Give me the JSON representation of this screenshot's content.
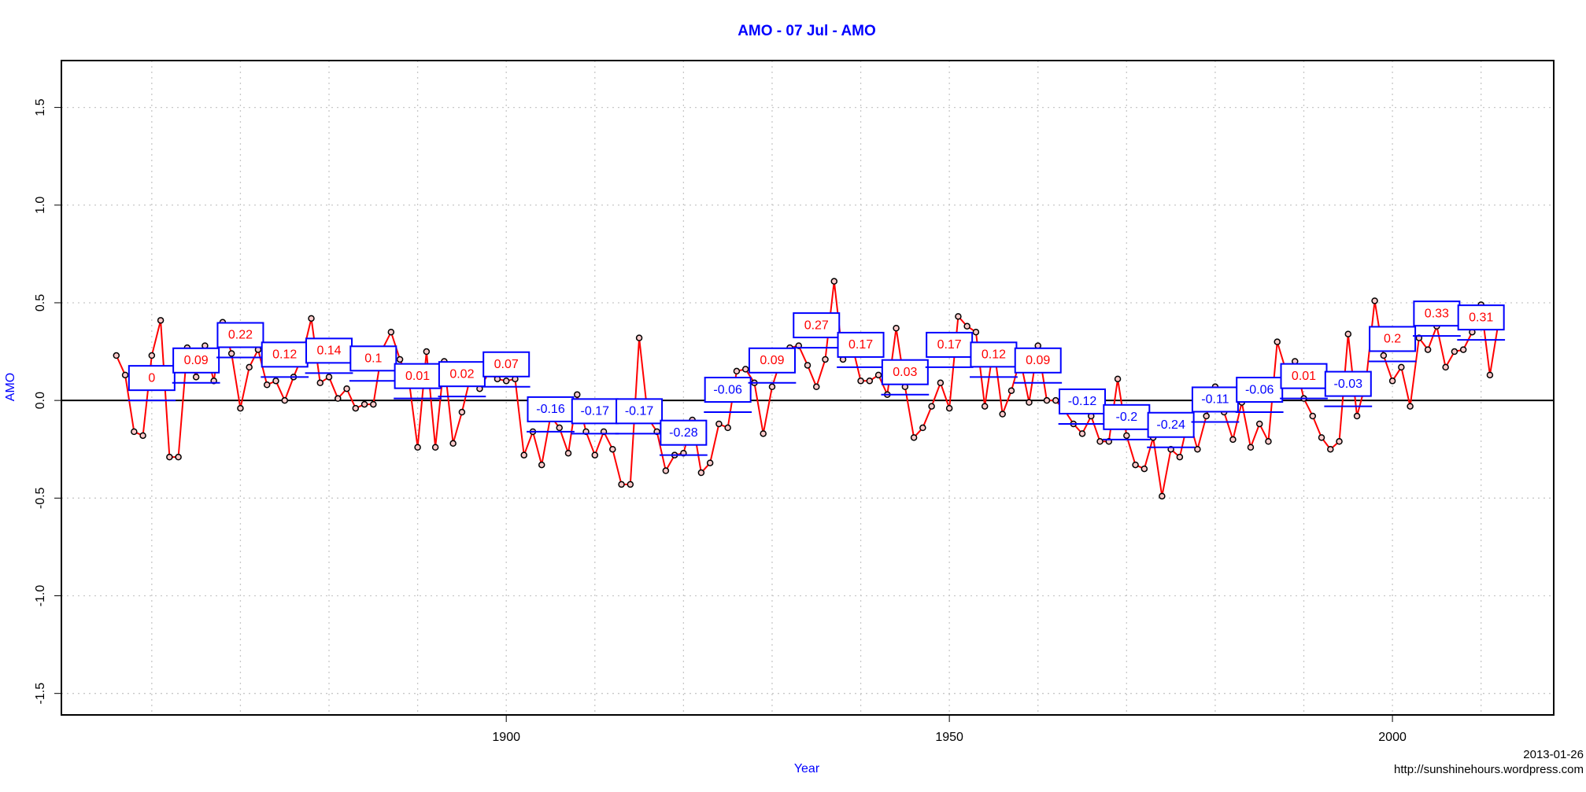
{
  "chart_data": {
    "type": "line",
    "title": "AMO - 07 Jul - AMO",
    "x_label": "Year",
    "y_label": "AMO",
    "annotations": [
      "2013-01-26",
      "http://sunshinehours.wordpress.com"
    ],
    "x": [
      1856,
      1857,
      1858,
      1859,
      1860,
      1861,
      1862,
      1863,
      1864,
      1865,
      1866,
      1867,
      1868,
      1869,
      1870,
      1871,
      1872,
      1873,
      1874,
      1875,
      1876,
      1877,
      1878,
      1879,
      1880,
      1881,
      1882,
      1883,
      1884,
      1885,
      1886,
      1887,
      1888,
      1889,
      1890,
      1891,
      1892,
      1893,
      1894,
      1895,
      1896,
      1897,
      1898,
      1899,
      1900,
      1901,
      1902,
      1903,
      1904,
      1905,
      1906,
      1907,
      1908,
      1909,
      1910,
      1911,
      1912,
      1913,
      1914,
      1915,
      1916,
      1917,
      1918,
      1919,
      1920,
      1921,
      1922,
      1923,
      1924,
      1925,
      1926,
      1927,
      1928,
      1929,
      1930,
      1931,
      1932,
      1933,
      1934,
      1935,
      1936,
      1937,
      1938,
      1939,
      1940,
      1941,
      1942,
      1943,
      1944,
      1945,
      1946,
      1947,
      1948,
      1949,
      1950,
      1951,
      1952,
      1953,
      1954,
      1955,
      1956,
      1957,
      1958,
      1959,
      1960,
      1961,
      1962,
      1963,
      1964,
      1965,
      1966,
      1967,
      1968,
      1969,
      1970,
      1971,
      1972,
      1973,
      1974,
      1975,
      1976,
      1977,
      1978,
      1979,
      1980,
      1981,
      1982,
      1983,
      1984,
      1985,
      1986,
      1987,
      1988,
      1989,
      1990,
      1991,
      1992,
      1993,
      1994,
      1995,
      1996,
      1997,
      1998,
      1999,
      2000,
      2001,
      2002,
      2003,
      2004,
      2005,
      2006,
      2007,
      2008,
      2009,
      2010,
      2011,
      2012
    ],
    "series": [
      {
        "color": "#ff0000",
        "values": [
          0.23,
          0.13,
          -0.16,
          -0.18,
          0.23,
          0.41,
          -0.29,
          -0.29,
          0.27,
          0.12,
          0.28,
          0.1,
          0.4,
          0.24,
          -0.04,
          0.17,
          0.26,
          0.08,
          0.1,
          0.0,
          0.12,
          0.23,
          0.42,
          0.09,
          0.12,
          0.01,
          0.06,
          -0.04,
          -0.02,
          -0.02,
          0.26,
          0.35,
          0.21,
          0.11,
          -0.24,
          0.25,
          -0.24,
          0.2,
          -0.22,
          -0.06,
          0.13,
          0.06,
          0.14,
          0.11,
          0.1,
          0.11,
          -0.28,
          -0.16,
          -0.33,
          -0.08,
          -0.14,
          -0.27,
          0.03,
          -0.16,
          -0.28,
          -0.16,
          -0.25,
          -0.43,
          -0.43,
          0.32,
          -0.09,
          -0.16,
          -0.36,
          -0.28,
          -0.27,
          -0.1,
          -0.37,
          -0.32,
          -0.12,
          -0.14,
          0.15,
          0.16,
          0.09,
          -0.17,
          0.07,
          0.21,
          0.27,
          0.28,
          0.18,
          0.07,
          0.21,
          0.61,
          0.21,
          0.29,
          0.1,
          0.1,
          0.13,
          0.03,
          0.37,
          0.07,
          -0.19,
          -0.14,
          -0.03,
          0.09,
          -0.04,
          0.43,
          0.38,
          0.35,
          -0.03,
          0.28,
          -0.07,
          0.05,
          0.21,
          -0.01,
          0.28,
          0.0,
          0.0,
          -0.05,
          -0.12,
          -0.17,
          -0.08,
          -0.21,
          -0.21,
          0.11,
          -0.18,
          -0.33,
          -0.35,
          -0.19,
          -0.49,
          -0.25,
          -0.29,
          -0.09,
          -0.25,
          -0.08,
          0.07,
          -0.06,
          -0.2,
          -0.01,
          -0.24,
          -0.12,
          -0.21,
          0.3,
          0.15,
          0.2,
          0.01,
          -0.08,
          -0.19,
          -0.25,
          -0.21,
          0.34,
          -0.08,
          0.09,
          0.51,
          0.23,
          0.1,
          0.17,
          -0.03,
          0.32,
          0.26,
          0.38,
          0.17,
          0.25,
          0.26,
          0.35,
          0.49,
          0.13,
          0.41
        ]
      }
    ],
    "decadal_means": {
      "color": "#0000ff",
      "x": [
        1860,
        1865,
        1870,
        1875,
        1880,
        1885,
        1890,
        1895,
        1900,
        1905,
        1910,
        1915,
        1920,
        1925,
        1930,
        1935,
        1940,
        1945,
        1950,
        1955,
        1960,
        1965,
        1970,
        1975,
        1980,
        1985,
        1990,
        1995,
        2000,
        2005,
        2010
      ],
      "values": [
        0,
        0.09,
        0.22,
        0.12,
        0.14,
        0.1,
        0.01,
        0.02,
        0.07,
        -0.16,
        -0.17,
        -0.17,
        -0.28,
        -0.06,
        0.09,
        0.27,
        0.17,
        0.03,
        0.17,
        0.12,
        0.09,
        -0.12,
        -0.2,
        -0.24,
        -0.11,
        -0.06,
        0.01,
        -0.03,
        0.2,
        0.33,
        0.31
      ]
    },
    "xlim": [
      1849.8,
      2018.2
    ],
    "ylim": [
      -1.61,
      1.74
    ],
    "xticks": [
      1900,
      1950,
      2000
    ],
    "xgrid": [
      1860,
      1870,
      1880,
      1890,
      1900,
      1910,
      1920,
      1930,
      1940,
      1950,
      1960,
      1970,
      1980,
      1990,
      2000,
      2010
    ],
    "yticks": [
      -1.5,
      {
        "value": -1,
        "label": "-1.0"
      },
      -0.5,
      {
        "value": 0,
        "label": "0.0"
      },
      0.5,
      {
        "value": 1,
        "label": "1.0"
      },
      1.5
    ],
    "grid": true,
    "reference_line": 0
  }
}
